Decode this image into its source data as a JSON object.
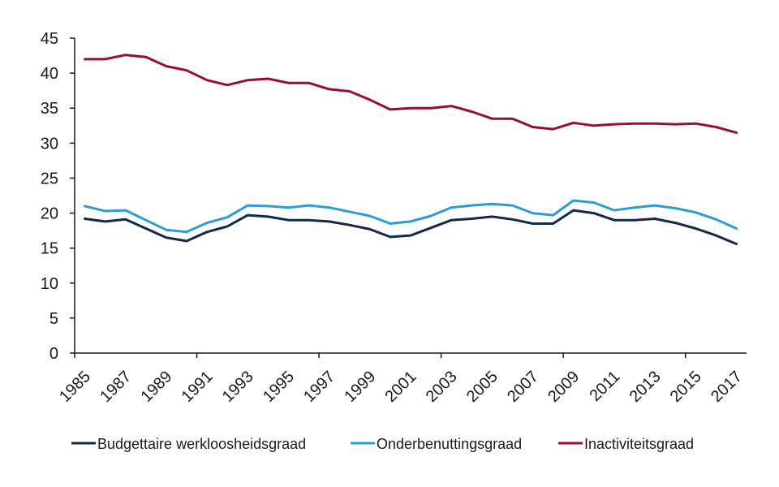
{
  "chart_data": {
    "type": "line",
    "x": [
      1985,
      1986,
      1987,
      1988,
      1989,
      1990,
      1991,
      1992,
      1993,
      1994,
      1995,
      1996,
      1997,
      1998,
      1999,
      2000,
      2001,
      2002,
      2003,
      2004,
      2005,
      2006,
      2007,
      2008,
      2009,
      2010,
      2011,
      2012,
      2013,
      2014,
      2015,
      2016,
      2017
    ],
    "x_tick_labels": [
      "1985",
      "1987",
      "1989",
      "1991",
      "1993",
      "1995",
      "1997",
      "1999",
      "2001",
      "2003",
      "2005",
      "2007",
      "2009",
      "2011",
      "2013",
      "2015",
      "2017"
    ],
    "y_ticks": [
      0,
      5,
      10,
      15,
      20,
      25,
      30,
      35,
      40,
      45
    ],
    "ylim": [
      0,
      45
    ],
    "xlim": [
      1984.5,
      2017.5
    ],
    "grid": false,
    "legend_position": "bottom",
    "series": [
      {
        "name": "Budgettaire werkloosheidsgraad",
        "color": "#13294b",
        "values": [
          19.2,
          18.8,
          19.1,
          17.8,
          16.5,
          16.0,
          17.3,
          18.1,
          19.7,
          19.5,
          19.0,
          19.0,
          18.8,
          18.3,
          17.7,
          16.6,
          16.8,
          17.9,
          19.0,
          19.2,
          19.5,
          19.1,
          18.5,
          18.5,
          20.4,
          20.0,
          19.0,
          19.0,
          19.2,
          18.6,
          17.8,
          16.8,
          15.6
        ]
      },
      {
        "name": "Onderbenuttingsgraad",
        "color": "#2d9cd4",
        "values": [
          21.0,
          20.3,
          20.4,
          19.0,
          17.6,
          17.3,
          18.6,
          19.4,
          21.1,
          21.0,
          20.8,
          21.1,
          20.8,
          20.2,
          19.6,
          18.5,
          18.8,
          19.6,
          20.8,
          21.1,
          21.3,
          21.1,
          20.0,
          19.7,
          21.8,
          21.5,
          20.4,
          20.8,
          21.1,
          20.7,
          20.1,
          19.1,
          17.8
        ]
      },
      {
        "name": "Inactiviteitsgraad",
        "color": "#9b0c31",
        "values": [
          42.0,
          42.0,
          42.6,
          42.3,
          41.0,
          40.4,
          39.0,
          38.3,
          39.0,
          39.2,
          38.6,
          38.6,
          37.7,
          37.4,
          36.2,
          34.8,
          35.0,
          35.0,
          35.3,
          34.5,
          33.5,
          33.5,
          32.3,
          32.0,
          32.9,
          32.5,
          32.7,
          32.8,
          32.8,
          32.7,
          32.8,
          32.3,
          31.5
        ]
      }
    ]
  }
}
